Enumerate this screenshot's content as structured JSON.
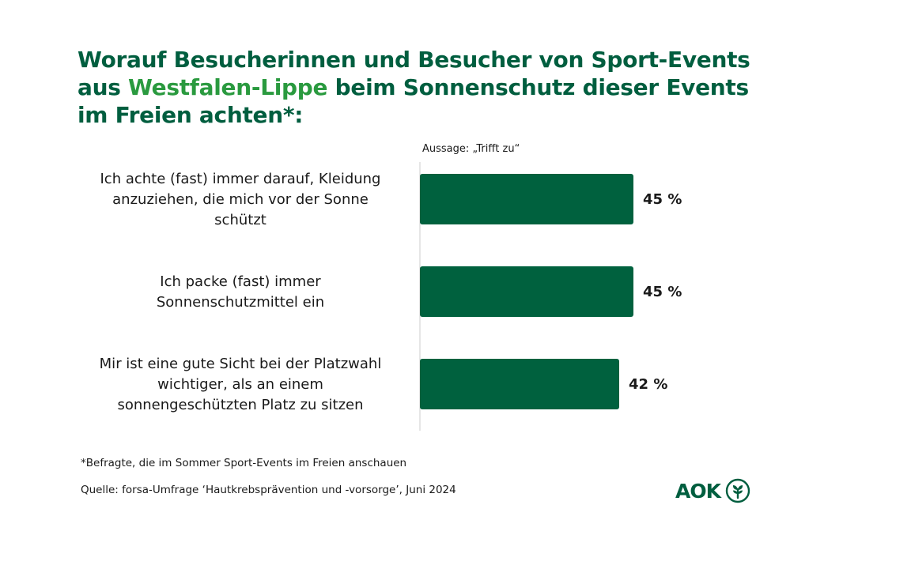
{
  "title": {
    "line1": "Worauf Besucherinnen und Besucher von Sport-Events",
    "line2_prefix": "aus ",
    "line2_highlight": "Westfalen-Lippe",
    "line2_suffix": " beim Sonnenschutz dieser Events",
    "line3": "im Freien achten*:"
  },
  "colors": {
    "title": "#005e3f",
    "highlight": "#2a9a3f",
    "bar": "#00613e",
    "axis": "#cccccc"
  },
  "chart_data": {
    "type": "bar",
    "orientation": "horizontal",
    "subtitle": "Aussage: „Trifft zu“",
    "categories": [
      [
        "Ich achte (fast) immer darauf, Kleidung",
        "anzuziehen, die mich vor der Sonne",
        "schützt"
      ],
      [
        "Ich packe (fast) immer",
        "Sonnenschutzmittel ein"
      ],
      [
        "Mir ist eine gute Sicht bei der Platzwahl",
        "wichtiger, als an einem",
        "sonnengeschützten Platz zu sitzen"
      ]
    ],
    "values": [
      45,
      45,
      42
    ],
    "value_labels": [
      "45 %",
      "45 %",
      "42 %"
    ],
    "unit": "%",
    "grid": false,
    "legend": "none"
  },
  "footnotes": {
    "note": "*Befragte, die im Sommer Sport-Events im Freien anschauen",
    "source": "Quelle: forsa-Umfrage ‘Hautkrebsprävention und -vorsorge’, Juni 2024"
  },
  "logo": {
    "text": "AOK",
    "icon": "aok-tree-icon"
  }
}
